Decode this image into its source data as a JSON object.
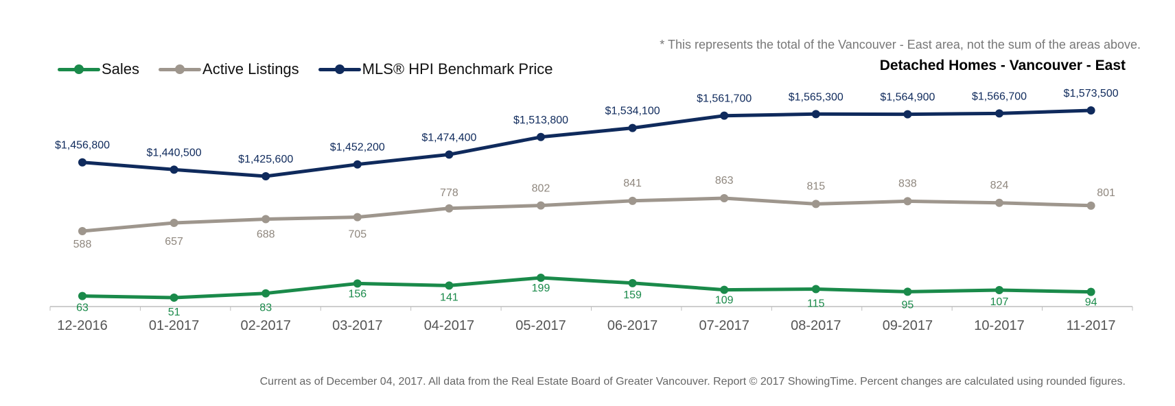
{
  "footnote": "* This represents the total of the Vancouver - East area, not the sum of the areas above.",
  "subtitle": "Detached Homes - Vancouver - East",
  "source": "Current as of December 04, 2017. All data from the Real Estate Board of Greater Vancouver. Report © 2017 ShowingTime. Percent changes are calculated using rounded figures.",
  "legend": [
    {
      "label": "Sales",
      "color": "#1a8a4a"
    },
    {
      "label": "Active Listings",
      "color": "#9e968d"
    },
    {
      "label": "MLS® HPI Benchmark Price",
      "color": "#0f2a5c"
    }
  ],
  "chart_data": {
    "type": "line",
    "categories": [
      "12-2016",
      "01-2017",
      "02-2017",
      "03-2017",
      "04-2017",
      "05-2017",
      "06-2017",
      "07-2017",
      "08-2017",
      "09-2017",
      "10-2017",
      "11-2017"
    ],
    "series": [
      {
        "name": "Sales",
        "color": "#1a8a4a",
        "label_position": "below",
        "values": [
          63,
          51,
          83,
          156,
          141,
          199,
          159,
          109,
          115,
          95,
          107,
          94
        ],
        "labels": [
          "63",
          "51",
          "83",
          "156",
          "141",
          "199",
          "159",
          "109",
          "115",
          "95",
          "107",
          "94"
        ]
      },
      {
        "name": "Active Listings",
        "color": "#9e968d",
        "label_position": "mixed",
        "values": [
          588,
          657,
          688,
          705,
          778,
          802,
          841,
          863,
          815,
          838,
          824,
          801
        ],
        "labels": [
          "588",
          "657",
          "688",
          "705",
          "778",
          "802",
          "841",
          "863",
          "815",
          "838",
          "824",
          "801"
        ]
      },
      {
        "name": "MLS® HPI Benchmark Price",
        "color": "#0f2a5c",
        "label_position": "above",
        "values": [
          1456800,
          1440500,
          1425600,
          1452200,
          1474400,
          1513800,
          1534100,
          1561700,
          1565300,
          1564900,
          1566700,
          1573500
        ],
        "labels": [
          "$1,456,800",
          "$1,440,500",
          "$1,425,600",
          "$1,452,200",
          "$1,474,400",
          "$1,513,800",
          "$1,534,100",
          "$1,561,700",
          "$1,565,300",
          "$1,564,900",
          "$1,566,700",
          "$1,573,500"
        ]
      }
    ],
    "grid": false,
    "legend_position": "top-left"
  }
}
